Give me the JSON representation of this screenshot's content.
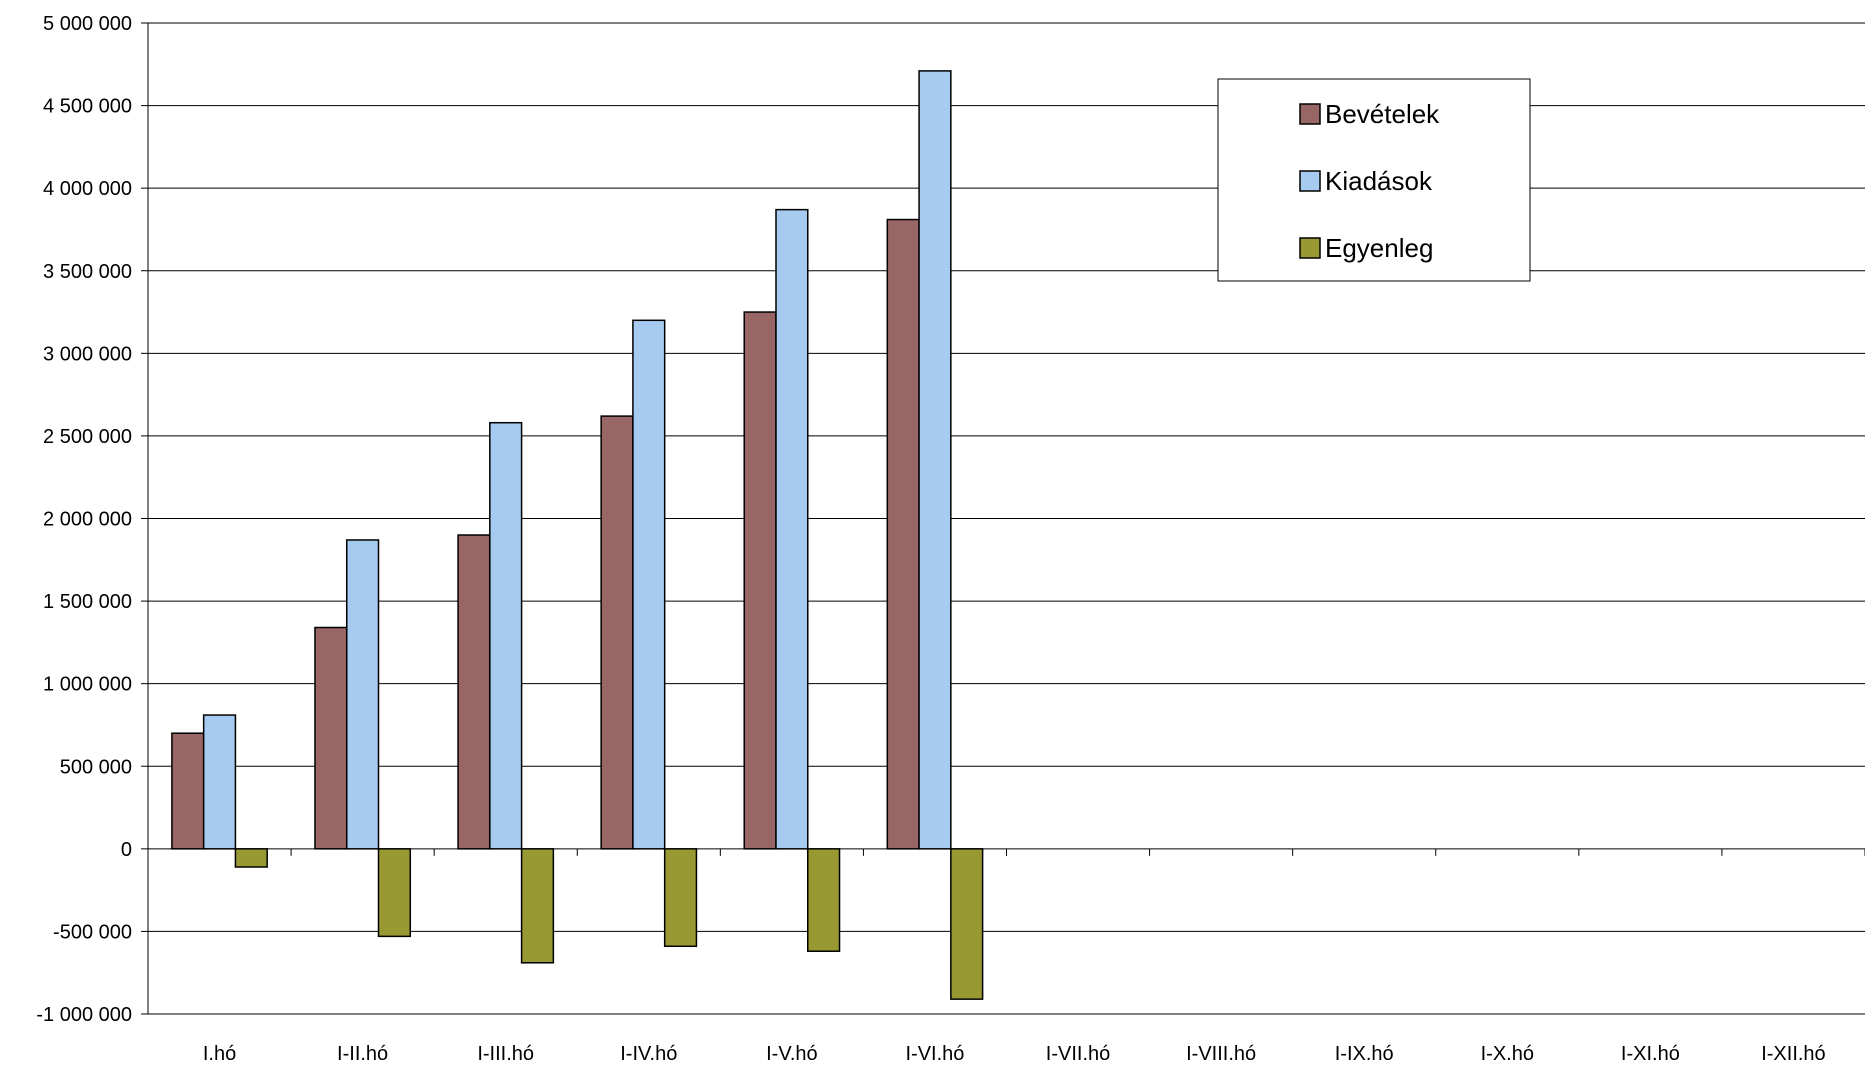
{
  "chart_data": {
    "type": "bar",
    "title": "",
    "xlabel": "",
    "ylabel": "",
    "ylim": [
      -1000000,
      5000000
    ],
    "yticks": [
      5000000,
      4500000,
      4000000,
      3500000,
      3000000,
      2500000,
      2000000,
      1500000,
      1000000,
      500000,
      0,
      -500000,
      -1000000
    ],
    "ytick_labels": [
      "5 000 000",
      "4 500 000",
      "4 000 000",
      "3 500 000",
      "3 000 000",
      "2 500 000",
      "2 000 000",
      "1 500 000",
      "1 000 000",
      "500 000",
      "0",
      "-500 000",
      "-1 000 000"
    ],
    "grid": true,
    "legend_position": "top-right",
    "categories": [
      "I.hó",
      "I-II.hó",
      "I-III.hó",
      "I-IV.hó",
      "I-V.hó",
      "I-VI.hó",
      "I-VII.hó",
      "I-VIII.hó",
      "I-IX.hó",
      "I-X.hó",
      "I-XI.hó",
      "I-XII.hó"
    ],
    "series": [
      {
        "name": "Bevételek",
        "color": "#996666",
        "values": [
          700000,
          1340000,
          1900000,
          2620000,
          3250000,
          3810000,
          null,
          null,
          null,
          null,
          null,
          null
        ]
      },
      {
        "name": "Kiadások",
        "color": "#a6caf0",
        "values": [
          810000,
          1870000,
          2580000,
          3200000,
          3870000,
          4710000,
          null,
          null,
          null,
          null,
          null,
          null
        ]
      },
      {
        "name": "Egyenleg",
        "color": "#999933",
        "values": [
          -110000,
          -530000,
          -690000,
          -590000,
          -620000,
          -910000,
          null,
          null,
          null,
          null,
          null,
          null
        ]
      }
    ]
  }
}
